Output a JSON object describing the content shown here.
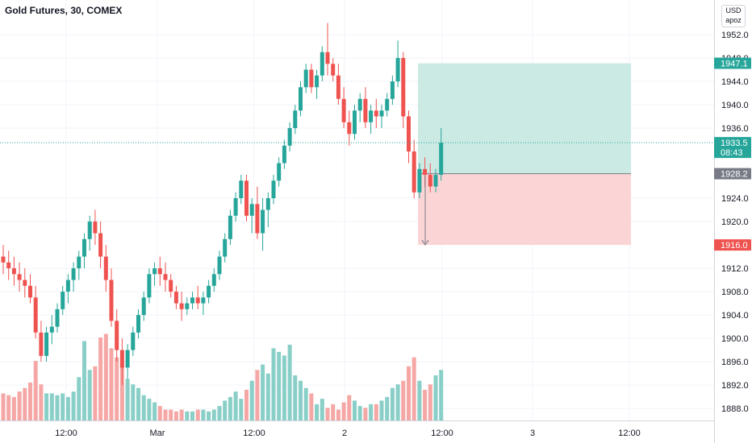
{
  "header": {
    "title": "Gold Futures, 30, COMEX"
  },
  "price_scale": {
    "currency": "USD",
    "mode": "apoz"
  },
  "colors": {
    "up": "#26a69a",
    "down": "#ef5350",
    "up_volume": "#89cfc7",
    "down_volume": "#f5a7a6",
    "profit_zone": "#cceae4",
    "loss_zone": "#fbd5d6",
    "target": "#26a69a",
    "stop": "#ef5350",
    "entry": "#787b86"
  },
  "chart_data": {
    "type": "candlestick",
    "title": "Gold Futures, 30, COMEX",
    "ylim": [
      1886.5,
      1956
    ],
    "y_ticks": [
      1952,
      1948,
      1944,
      1940,
      1936,
      1924,
      1920,
      1912,
      1908,
      1904,
      1900,
      1896,
      1892,
      1888
    ],
    "x_ticks": [
      "12:00",
      "Mar",
      "12:00",
      "2",
      "12:00",
      "3",
      "12:00"
    ],
    "price_labels": {
      "target": "1947.1",
      "last": "1933.5",
      "countdown": "08:43",
      "entry": "1928.2",
      "stop": "1916.0"
    },
    "position": {
      "type": "long",
      "entry": 1928.2,
      "target": 1947.1,
      "stop": 1916.0
    },
    "candles": [
      [
        1914,
        1916,
        1911,
        1913
      ],
      [
        1913,
        1915,
        1910,
        1912
      ],
      [
        1912,
        1914,
        1909,
        1911
      ],
      [
        1911,
        1913,
        1908,
        1910
      ],
      [
        1910,
        1912,
        1907,
        1909
      ],
      [
        1909,
        1911,
        1906,
        1907
      ],
      [
        1907,
        1909,
        1900,
        1901
      ],
      [
        1901,
        1903,
        1896,
        1897
      ],
      [
        1897,
        1902,
        1896,
        1901
      ],
      [
        1901,
        1904,
        1899,
        1902
      ],
      [
        1902,
        1906,
        1901,
        1905
      ],
      [
        1905,
        1909,
        1904,
        1908
      ],
      [
        1908,
        1911,
        1906,
        1910
      ],
      [
        1910,
        1913,
        1908,
        1912
      ],
      [
        1912,
        1915,
        1910,
        1914
      ],
      [
        1914,
        1918,
        1912,
        1917
      ],
      [
        1917,
        1921,
        1915,
        1920
      ],
      [
        1920,
        1922,
        1916,
        1918
      ],
      [
        1918,
        1920,
        1912,
        1914
      ],
      [
        1914,
        1916,
        1908,
        1910
      ],
      [
        1910,
        1912,
        1902,
        1903
      ],
      [
        1903,
        1905,
        1896,
        1898
      ],
      [
        1898,
        1900,
        1892,
        1895
      ],
      [
        1895,
        1899,
        1893,
        1898
      ],
      [
        1898,
        1902,
        1897,
        1901
      ],
      [
        1901,
        1905,
        1900,
        1904
      ],
      [
        1904,
        1908,
        1903,
        1907
      ],
      [
        1907,
        1912,
        1906,
        1911
      ],
      [
        1911,
        1913,
        1909,
        1912
      ],
      [
        1912,
        1914,
        1909,
        1911
      ],
      [
        1911,
        1913,
        1908,
        1910
      ],
      [
        1910,
        1911,
        1907,
        1908
      ],
      [
        1908,
        1909,
        1905,
        1906
      ],
      [
        1906,
        1908,
        1903,
        1905
      ],
      [
        1905,
        1907,
        1904,
        1906
      ],
      [
        1906,
        1908,
        1905,
        1907
      ],
      [
        1907,
        1909,
        1905,
        1906
      ],
      [
        1906,
        1908,
        1904,
        1907
      ],
      [
        1907,
        1910,
        1906,
        1909
      ],
      [
        1909,
        1912,
        1908,
        1911
      ],
      [
        1911,
        1915,
        1910,
        1914
      ],
      [
        1914,
        1918,
        1913,
        1917
      ],
      [
        1917,
        1922,
        1916,
        1921
      ],
      [
        1921,
        1925,
        1920,
        1924
      ],
      [
        1924,
        1928,
        1923,
        1927
      ],
      [
        1927,
        1928,
        1920,
        1921
      ],
      [
        1921,
        1924,
        1918,
        1923
      ],
      [
        1923,
        1926,
        1917,
        1918
      ],
      [
        1918,
        1924,
        1915,
        1922
      ],
      [
        1922,
        1925,
        1919,
        1924
      ],
      [
        1924,
        1928,
        1923,
        1927
      ],
      [
        1927,
        1931,
        1926,
        1930
      ],
      [
        1930,
        1934,
        1929,
        1933
      ],
      [
        1933,
        1937,
        1932,
        1936
      ],
      [
        1936,
        1940,
        1935,
        1939
      ],
      [
        1939,
        1944,
        1938,
        1943
      ],
      [
        1943,
        1947,
        1942,
        1946
      ],
      [
        1946,
        1947,
        1942,
        1943
      ],
      [
        1943,
        1946,
        1941,
        1945
      ],
      [
        1945,
        1950,
        1944,
        1949
      ],
      [
        1949,
        1954,
        1945,
        1947
      ],
      [
        1947,
        1948,
        1944,
        1945
      ],
      [
        1945,
        1947,
        1940,
        1941
      ],
      [
        1941,
        1943,
        1936,
        1937
      ],
      [
        1937,
        1939,
        1933,
        1935
      ],
      [
        1935,
        1940,
        1934,
        1939
      ],
      [
        1939,
        1942,
        1937,
        1941
      ],
      [
        1941,
        1943,
        1936,
        1937
      ],
      [
        1937,
        1940,
        1935,
        1939
      ],
      [
        1939,
        1941,
        1936,
        1938
      ],
      [
        1938,
        1940,
        1936,
        1939
      ],
      [
        1939,
        1942,
        1938,
        1941
      ],
      [
        1941,
        1945,
        1940,
        1944
      ],
      [
        1944,
        1951,
        1943,
        1948
      ],
      [
        1948,
        1949,
        1936,
        1938
      ],
      [
        1938,
        1939,
        1930,
        1932
      ],
      [
        1932,
        1934,
        1924,
        1925
      ],
      [
        1925,
        1930,
        1924,
        1929
      ],
      [
        1929,
        1931,
        1926,
        1928
      ],
      [
        1928,
        1930,
        1925,
        1926
      ],
      [
        1926,
        1929,
        1925,
        1928
      ],
      [
        1928,
        1936,
        1927,
        1933.5
      ]
    ],
    "volumes": [
      15,
      14,
      13,
      16,
      18,
      21,
      33,
      20,
      15,
      15,
      14,
      15,
      13,
      16,
      24,
      44,
      28,
      30,
      46,
      48,
      40,
      35,
      30,
      23,
      20,
      18,
      14,
      12,
      10,
      8,
      6,
      6,
      5,
      6,
      5,
      5,
      6,
      6,
      5,
      6,
      8,
      11,
      13,
      16,
      12,
      17,
      22,
      28,
      31,
      26,
      40,
      38,
      36,
      42,
      25,
      22,
      18,
      15,
      9,
      12,
      7,
      9,
      6,
      10,
      14,
      11,
      8,
      7,
      9,
      9,
      11,
      13,
      18,
      20,
      22,
      30,
      35,
      22,
      17,
      20,
      25,
      28
    ]
  }
}
